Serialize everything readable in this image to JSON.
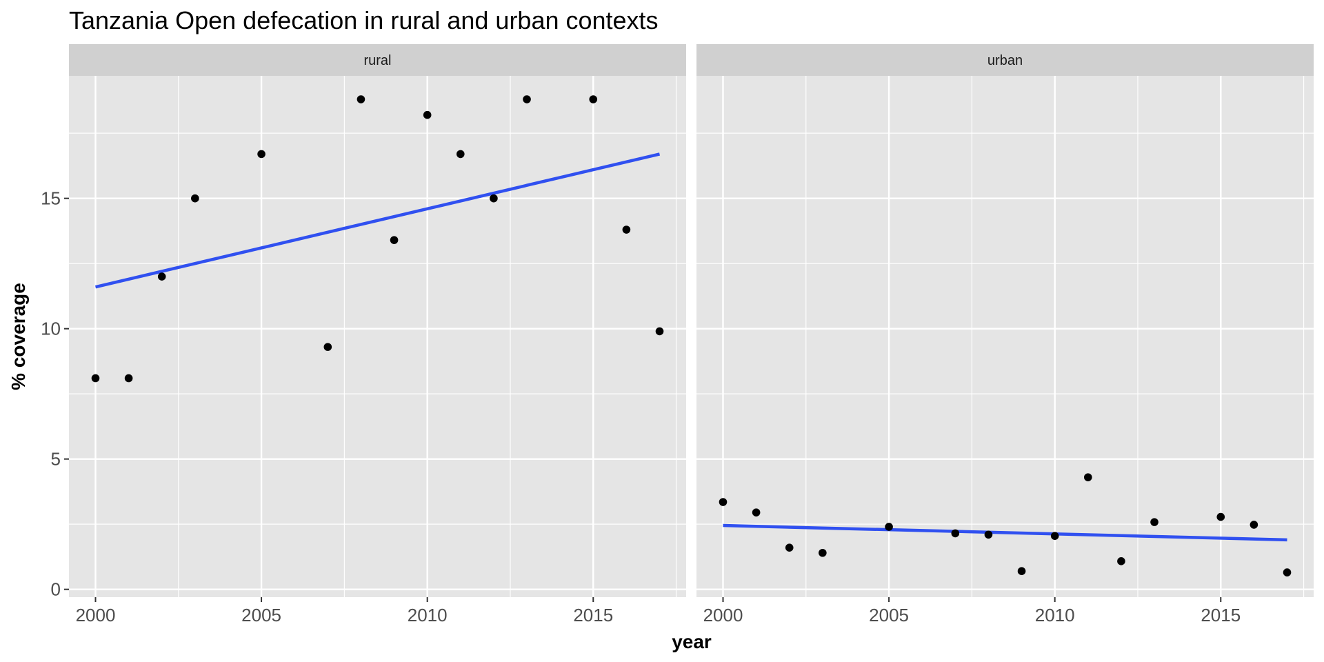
{
  "chart_data": {
    "type": "scatter",
    "title": "Tanzania Open defecation in rural and urban contexts",
    "xlabel": "year",
    "ylabel": "% coverage",
    "xlim": [
      1999.2,
      2017.8
    ],
    "ylim": [
      -0.3,
      19.7
    ],
    "x_ticks": [
      2000,
      2005,
      2010,
      2015
    ],
    "y_ticks": [
      0,
      5,
      10,
      15
    ],
    "grid": true,
    "colors": {
      "panel_bg": "#e5e5e5",
      "strip_bg": "#d0d0d0",
      "grid": "#ffffff",
      "points": "#000000",
      "fit_line": "#3050f0"
    },
    "panels": [
      {
        "label": "rural",
        "points": [
          {
            "x": 2000,
            "y": 8.1
          },
          {
            "x": 2001,
            "y": 8.1
          },
          {
            "x": 2002,
            "y": 12.0
          },
          {
            "x": 2003,
            "y": 15.0
          },
          {
            "x": 2005,
            "y": 16.7
          },
          {
            "x": 2007,
            "y": 9.3
          },
          {
            "x": 2008,
            "y": 18.8
          },
          {
            "x": 2009,
            "y": 13.4
          },
          {
            "x": 2010,
            "y": 18.2
          },
          {
            "x": 2011,
            "y": 16.7
          },
          {
            "x": 2012,
            "y": 15.0
          },
          {
            "x": 2013,
            "y": 18.8
          },
          {
            "x": 2015,
            "y": 18.8
          },
          {
            "x": 2016,
            "y": 13.8
          },
          {
            "x": 2017,
            "y": 9.9
          }
        ],
        "fit": {
          "x": [
            2000,
            2017
          ],
          "y": [
            11.6,
            16.7
          ]
        }
      },
      {
        "label": "urban",
        "points": [
          {
            "x": 2000,
            "y": 3.35
          },
          {
            "x": 2001,
            "y": 2.95
          },
          {
            "x": 2002,
            "y": 1.6
          },
          {
            "x": 2003,
            "y": 1.4
          },
          {
            "x": 2005,
            "y": 2.4
          },
          {
            "x": 2007,
            "y": 2.15
          },
          {
            "x": 2008,
            "y": 2.1
          },
          {
            "x": 2009,
            "y": 0.7
          },
          {
            "x": 2010,
            "y": 2.05
          },
          {
            "x": 2011,
            "y": 4.3
          },
          {
            "x": 2012,
            "y": 1.08
          },
          {
            "x": 2013,
            "y": 2.58
          },
          {
            "x": 2015,
            "y": 2.78
          },
          {
            "x": 2016,
            "y": 2.48
          },
          {
            "x": 2017,
            "y": 0.65
          }
        ],
        "fit": {
          "x": [
            2000,
            2017
          ],
          "y": [
            2.45,
            1.9
          ]
        }
      }
    ]
  }
}
